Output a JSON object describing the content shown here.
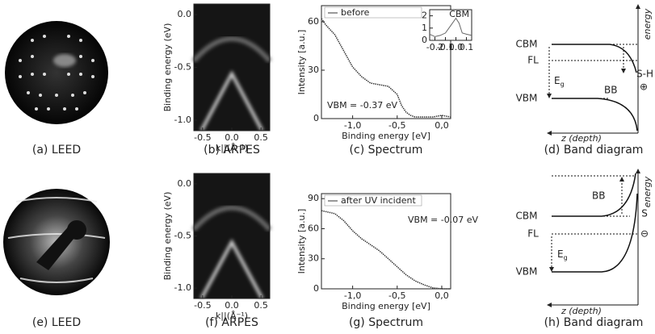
{
  "panels": {
    "a": {
      "caption": "(a) LEED"
    },
    "e": {
      "caption": "(e) LEED"
    },
    "d": {
      "caption": "(d) Band diagram",
      "cbm": "CBM",
      "fl": "FL",
      "vbm": "VBM",
      "eg_symbol": "E",
      "eg_subscript": "g",
      "bb": "BB",
      "surface": "S-H",
      "charge": "⊕",
      "z_axis": "z (depth)",
      "energy_axis": "energy"
    },
    "h": {
      "caption": "(h) Band diagram",
      "cbm": "CBM",
      "fl": "FL",
      "vbm": "VBM",
      "eg_symbol": "E",
      "eg_subscript": "g",
      "bb": "BB",
      "surface": "S",
      "charge": "⊖",
      "z_axis": "z (depth)",
      "energy_axis": "energy"
    }
  },
  "chart_data": [
    {
      "type": "image-plot",
      "caption": "(b) ARPES",
      "ylabel": "Binding energy (eV)",
      "xlabel": "k||(Å⁻¹)",
      "xlim": [
        -0.65,
        0.65
      ],
      "ylim": [
        -1.1,
        0.1
      ],
      "xticks": [
        -0.5,
        {
          "value": 0,
          "label": "0.0"
        },
        0.5
      ],
      "yticks": [
        {
          "value": 0,
          "label": "0.0"
        },
        -0.5,
        {
          "value": -1,
          "label": "-1.0"
        }
      ]
    },
    {
      "type": "line",
      "caption": "(c) Spectrum",
      "ylabel": "Intensity [a.u.]",
      "xlabel": "Binding energy [eV]",
      "annotation": "VBM = -0.37 eV",
      "xlim": [
        -1.35,
        0.1
      ],
      "ylim": [
        0,
        70
      ],
      "xticks": [
        {
          "value": -1,
          "label": "-1,0"
        },
        {
          "value": -0.5,
          "label": "-0,5"
        },
        {
          "value": 0,
          "label": "0,0"
        }
      ],
      "yticks": [
        0,
        30,
        60
      ],
      "x": [
        -1.35,
        -1.3,
        -1.2,
        -1.1,
        -1.0,
        -0.9,
        -0.8,
        -0.7,
        -0.6,
        -0.5,
        -0.45,
        -0.4,
        -0.35,
        -0.3,
        -0.2,
        -0.1,
        0.0,
        0.1
      ],
      "series": [
        {
          "name": "before",
          "color": "#333333",
          "values": [
            62,
            58,
            52,
            42,
            32,
            26,
            22,
            21,
            20,
            15,
            8,
            4,
            2,
            1,
            1,
            1,
            2,
            1
          ]
        }
      ],
      "inset": {
        "title": "CBM",
        "xlim": [
          -0.25,
          0.15
        ],
        "ylim": [
          0,
          2.5
        ],
        "xticks": [
          -0.2,
          -0.1,
          {
            "value": 0,
            "label": "0.0"
          },
          0.1
        ],
        "yticks": [
          0,
          1,
          2
        ],
        "x": [
          -0.25,
          -0.2,
          -0.15,
          -0.1,
          -0.05,
          0.0,
          0.03,
          0.06,
          0.1,
          0.15
        ],
        "values": [
          0.5,
          0.3,
          0.4,
          0.6,
          1.2,
          1.8,
          1.4,
          0.6,
          0.5,
          0.4
        ],
        "color": "#666666"
      }
    },
    {
      "type": "image-plot",
      "caption": "(f) ARPES",
      "ylabel": "Binding energy (eV)",
      "xlabel": "k||(Å⁻¹)",
      "xlim": [
        -0.65,
        0.65
      ],
      "ylim": [
        -1.1,
        0.1
      ],
      "xticks": [
        -0.5,
        {
          "value": 0,
          "label": "0.0"
        },
        0.5
      ],
      "yticks": [
        {
          "value": 0,
          "label": "0.0"
        },
        -0.5,
        {
          "value": -1,
          "label": "-1.0"
        }
      ]
    },
    {
      "type": "line",
      "caption": "(g) Spectrum",
      "ylabel": "Intensity [a.u.]",
      "xlabel": "Binding energy [eV]",
      "annotation": "VBM = -0.07 eV",
      "xlim": [
        -1.35,
        0.1
      ],
      "ylim": [
        0,
        95
      ],
      "xticks": [
        {
          "value": -1,
          "label": "-1,0"
        },
        {
          "value": -0.5,
          "label": "-0,5"
        },
        {
          "value": 0,
          "label": "0,0"
        }
      ],
      "yticks": [
        0,
        30,
        60,
        90
      ],
      "x": [
        -1.35,
        -1.2,
        -1.1,
        -1.0,
        -0.9,
        -0.8,
        -0.7,
        -0.6,
        -0.5,
        -0.4,
        -0.3,
        -0.2,
        -0.1,
        0.0,
        0.1
      ],
      "series": [
        {
          "name": "after UV incident",
          "color": "#333333",
          "values": [
            78,
            75,
            68,
            58,
            50,
            44,
            38,
            30,
            22,
            14,
            8,
            4,
            1,
            0,
            0
          ]
        }
      ]
    }
  ]
}
